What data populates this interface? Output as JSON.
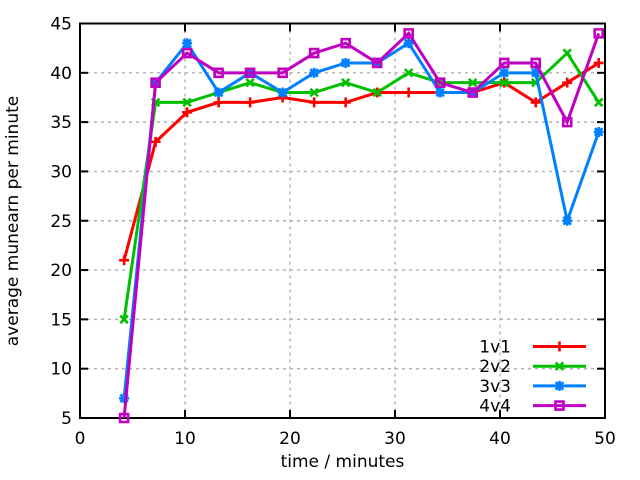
{
  "chart_data": {
    "type": "line",
    "title": "",
    "xlabel": "time / minutes",
    "ylabel": "average munearn per minute",
    "xlim": [
      0,
      50
    ],
    "ylim": [
      5,
      45
    ],
    "xticks": [
      0,
      10,
      20,
      30,
      40,
      50
    ],
    "yticks": [
      5,
      10,
      15,
      20,
      25,
      30,
      35,
      40,
      45
    ],
    "grid": true,
    "legend_position": "bottom-right-inside",
    "x": [
      4.2,
      7.2,
      10.2,
      13.2,
      16.2,
      19.3,
      22.3,
      25.3,
      28.3,
      31.3,
      34.3,
      37.4,
      40.4,
      43.4,
      46.4,
      49.4
    ],
    "series": [
      {
        "name": "1v1",
        "color": "#ff0000",
        "marker": "plus",
        "values": [
          21,
          33,
          36,
          37,
          37,
          37.5,
          37,
          37,
          38,
          38,
          38,
          38,
          39,
          37,
          39,
          41
        ]
      },
      {
        "name": "2v2",
        "color": "#00c000",
        "marker": "cross",
        "values": [
          15,
          37,
          37,
          38,
          39,
          38,
          38,
          39,
          38,
          40,
          39,
          39,
          39,
          39,
          42,
          37
        ]
      },
      {
        "name": "3v3",
        "color": "#0080ff",
        "marker": "asterisk",
        "values": [
          7,
          39,
          43,
          38,
          40,
          38,
          40,
          41,
          41,
          43,
          38,
          38,
          40,
          40,
          25,
          34
        ]
      },
      {
        "name": "4v4",
        "color": "#c000c0",
        "marker": "square",
        "values": [
          5,
          39,
          42,
          40,
          40,
          40,
          42,
          43,
          41,
          44,
          39,
          38,
          41,
          41,
          35,
          44
        ]
      }
    ]
  }
}
